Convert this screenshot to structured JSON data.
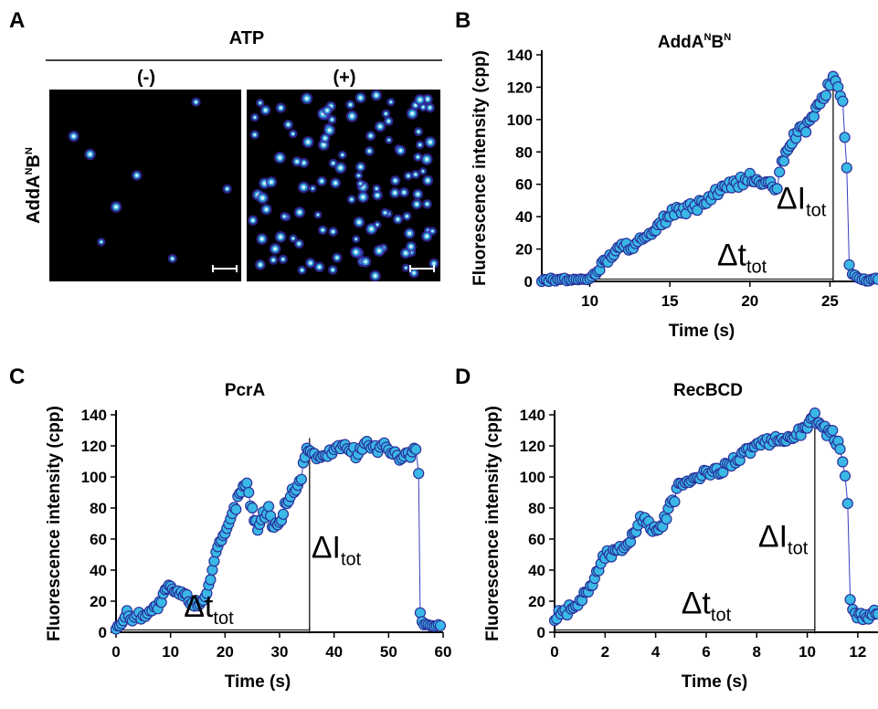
{
  "panels": {
    "A": {
      "letter": "A",
      "header": "ATP",
      "col_minus": "(-)",
      "col_plus": "(+)",
      "row_label_main": "AddA",
      "row_label_sup1": "N",
      "row_label_mid": "B",
      "row_label_sup2": "N"
    },
    "B": {
      "letter": "B"
    },
    "C": {
      "letter": "C"
    },
    "D": {
      "letter": "D"
    }
  },
  "colors": {
    "marker_fill": "#3ab8e6",
    "marker_edge": "#2a2f9a",
    "line": "#3a3cc0",
    "micrograph_bg": "#000000",
    "spot_core": "#c9f0ff"
  },
  "chart_data": [
    {
      "id": "B",
      "type": "scatter",
      "title_main": "AddA",
      "title_sup1": "N",
      "title_mid": "B",
      "title_sup2": "N",
      "xlabel": "Time (s)",
      "ylabel": "Fluorescence intensity (cpp)",
      "xlim": [
        7,
        28
      ],
      "ylim": [
        0,
        140
      ],
      "xticks": [
        10,
        15,
        20,
        25
      ],
      "yticks": [
        0,
        20,
        40,
        60,
        80,
        100,
        120,
        140
      ],
      "anno_dt": "Δt",
      "anno_dt_sub": "tot",
      "anno_di": "ΔI",
      "anno_di_sub": "tot",
      "dt_range": [
        10,
        25.2
      ],
      "di_x": 25.2,
      "di_top": 125,
      "keypoints": [
        [
          7,
          1
        ],
        [
          9,
          1
        ],
        [
          10,
          2
        ],
        [
          10.5,
          6
        ],
        [
          11,
          13
        ],
        [
          11.5,
          18
        ],
        [
          12,
          21
        ],
        [
          13,
          24
        ],
        [
          14,
          29
        ],
        [
          14.5,
          36
        ],
        [
          15,
          42
        ],
        [
          16,
          44
        ],
        [
          17,
          48
        ],
        [
          18,
          55
        ],
        [
          19,
          60
        ],
        [
          20,
          64
        ],
        [
          21,
          60
        ],
        [
          21.7,
          58
        ],
        [
          22,
          72
        ],
        [
          22.5,
          86
        ],
        [
          23,
          92
        ],
        [
          23.5,
          95
        ],
        [
          24,
          104
        ],
        [
          24.5,
          112
        ],
        [
          25,
          122
        ],
        [
          25.2,
          126
        ],
        [
          25.5,
          120
        ],
        [
          25.8,
          112
        ],
        [
          26.05,
          70
        ],
        [
          26.2,
          10
        ],
        [
          26.4,
          4
        ],
        [
          27,
          1
        ],
        [
          28,
          1
        ]
      ]
    },
    {
      "id": "C",
      "type": "scatter",
      "title": "PcrA",
      "xlabel": "Time (s)",
      "ylabel": "Fluorescence intensity (cpp)",
      "xlim": [
        0,
        60
      ],
      "ylim": [
        0,
        140
      ],
      "xticks": [
        0,
        10,
        20,
        30,
        40,
        50,
        60
      ],
      "yticks": [
        0,
        20,
        40,
        60,
        80,
        100,
        120,
        140
      ],
      "anno_dt": "Δt",
      "anno_dt_sub": "tot",
      "anno_di": "ΔI",
      "anno_di_sub": "tot",
      "dt_range": [
        0,
        35.5
      ],
      "di_x": 35.5,
      "di_top": 125,
      "keypoints": [
        [
          0,
          3
        ],
        [
          1,
          6
        ],
        [
          2,
          12
        ],
        [
          3,
          9
        ],
        [
          5,
          12
        ],
        [
          7,
          15
        ],
        [
          8,
          18
        ],
        [
          9,
          25
        ],
        [
          10,
          30
        ],
        [
          11,
          24
        ],
        [
          12,
          26
        ],
        [
          13,
          22
        ],
        [
          14,
          20
        ],
        [
          15,
          18
        ],
        [
          16,
          22
        ],
        [
          17,
          30
        ],
        [
          18,
          45
        ],
        [
          19,
          56
        ],
        [
          20,
          62
        ],
        [
          21,
          72
        ],
        [
          22,
          82
        ],
        [
          23,
          92
        ],
        [
          24,
          95
        ],
        [
          25,
          78
        ],
        [
          26,
          68
        ],
        [
          27,
          75
        ],
        [
          28,
          80
        ],
        [
          29,
          66
        ],
        [
          30,
          70
        ],
        [
          31,
          82
        ],
        [
          32,
          88
        ],
        [
          33,
          94
        ],
        [
          34,
          100
        ],
        [
          35,
          120
        ],
        [
          36,
          115
        ],
        [
          38,
          112
        ],
        [
          40,
          118
        ],
        [
          42,
          120
        ],
        [
          44,
          115
        ],
        [
          46,
          122
        ],
        [
          48,
          118
        ],
        [
          50,
          120
        ],
        [
          52,
          110
        ],
        [
          54,
          115
        ],
        [
          55,
          118
        ],
        [
          55.5,
          100
        ],
        [
          55.8,
          10
        ],
        [
          56.5,
          5
        ],
        [
          58,
          4
        ],
        [
          59.5,
          4
        ]
      ]
    },
    {
      "id": "D",
      "type": "scatter",
      "title": "RecBCD",
      "xlabel": "Time (s)",
      "ylabel": "Fluorescence intensity (cpp)",
      "xlim": [
        0,
        12.8
      ],
      "ylim": [
        0,
        140
      ],
      "xticks": [
        0,
        2,
        4,
        6,
        8,
        10,
        12
      ],
      "yticks": [
        0,
        20,
        40,
        60,
        80,
        100,
        120,
        140
      ],
      "anno_dt": "Δt",
      "anno_dt_sub": "tot",
      "anno_di": "ΔI",
      "anno_di_sub": "tot",
      "dt_range": [
        0,
        10.3
      ],
      "di_x": 10.3,
      "di_top": 139,
      "keypoints": [
        [
          0,
          10
        ],
        [
          0.5,
          14
        ],
        [
          1,
          20
        ],
        [
          1.5,
          32
        ],
        [
          2,
          50
        ],
        [
          2.5,
          52
        ],
        [
          3,
          60
        ],
        [
          3.3,
          70
        ],
        [
          3.5,
          74
        ],
        [
          3.8,
          68
        ],
        [
          4.2,
          66
        ],
        [
          4.5,
          78
        ],
        [
          5,
          96
        ],
        [
          5.5,
          98
        ],
        [
          6,
          102
        ],
        [
          6.5,
          104
        ],
        [
          7,
          110
        ],
        [
          7.5,
          115
        ],
        [
          8,
          120
        ],
        [
          8.5,
          122
        ],
        [
          9,
          124
        ],
        [
          9.5,
          127
        ],
        [
          10,
          132
        ],
        [
          10.3,
          139
        ],
        [
          10.7,
          130
        ],
        [
          11,
          127
        ],
        [
          11.3,
          120
        ],
        [
          11.5,
          100
        ],
        [
          11.6,
          85
        ],
        [
          11.7,
          22
        ],
        [
          11.9,
          12
        ],
        [
          12.2,
          10
        ],
        [
          12.5,
          12
        ],
        [
          12.8,
          11
        ]
      ]
    }
  ]
}
